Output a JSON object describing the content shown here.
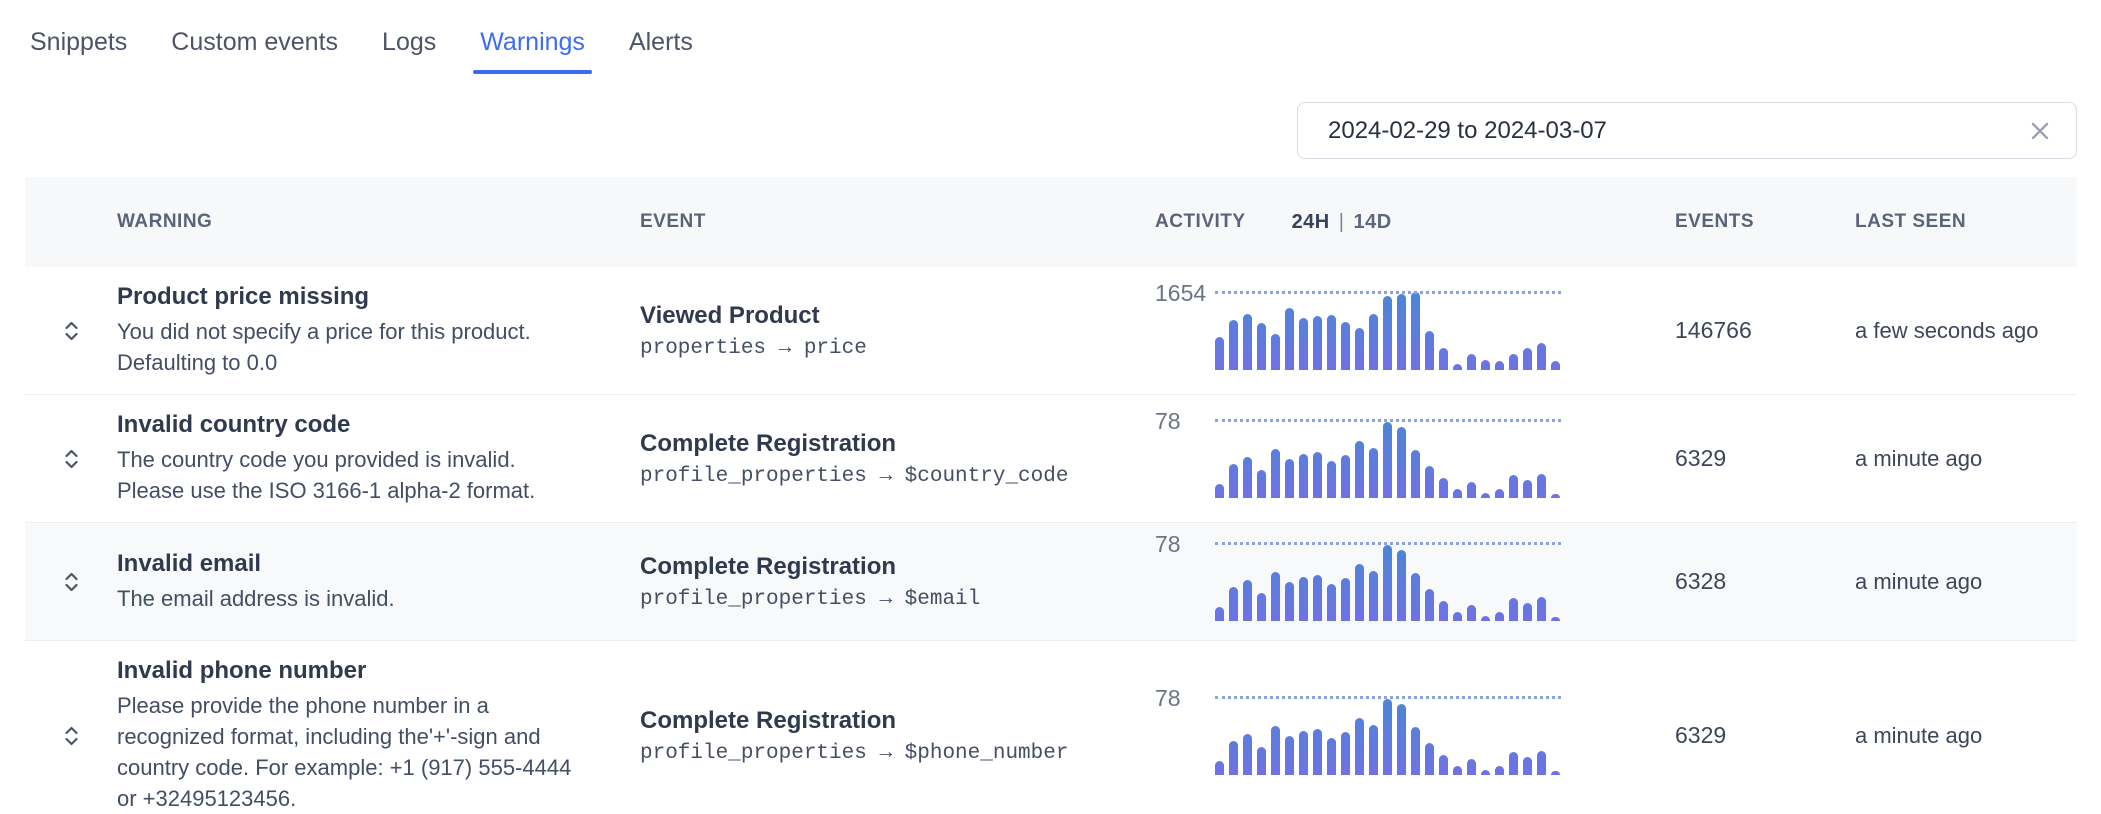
{
  "tabs": [
    {
      "label": "Snippets",
      "active": false
    },
    {
      "label": "Custom events",
      "active": false
    },
    {
      "label": "Logs",
      "active": false
    },
    {
      "label": "Warnings",
      "active": true
    },
    {
      "label": "Alerts",
      "active": false
    }
  ],
  "filters": {
    "date_range_value": "2024-02-29 to 2024-03-07"
  },
  "table": {
    "headers": {
      "warning": "WARNING",
      "event": "EVENT",
      "activity": "ACTIVITY",
      "toggle_24h": "24H",
      "toggle_divider": "|",
      "toggle_14d": "14D",
      "events": "EVENTS",
      "last_seen": "LAST SEEN"
    },
    "rows": [
      {
        "warning_title": "Product price missing",
        "warning_description": "You did not specify a price for this product. Defaulting to 0.0",
        "event_name": "Viewed Product",
        "event_property": "properties → price",
        "activity": {
          "max_label": "1654",
          "bars": [
            0.42,
            0.64,
            0.72,
            0.6,
            0.46,
            0.79,
            0.67,
            0.69,
            0.71,
            0.62,
            0.54,
            0.72,
            0.95,
            0.97,
            1.0,
            0.5,
            0.28,
            0.08,
            0.2,
            0.13,
            0.11,
            0.21,
            0.28,
            0.34,
            0.11
          ]
        },
        "events_count": "146766",
        "last_seen": "a few seconds ago"
      },
      {
        "warning_title": "Invalid country code",
        "warning_description": "The country code you provided is invalid. Please use the ISO 3166-1 alpha-2 format.",
        "event_name": "Complete Registration",
        "event_property": "profile_properties → $country_code",
        "activity": {
          "max_label": "78",
          "bars": [
            0.18,
            0.44,
            0.52,
            0.36,
            0.63,
            0.5,
            0.57,
            0.59,
            0.47,
            0.55,
            0.73,
            0.64,
            0.97,
            0.91,
            0.61,
            0.41,
            0.25,
            0.11,
            0.21,
            0.07,
            0.11,
            0.29,
            0.23,
            0.31,
            0.05
          ]
        },
        "events_count": "6329",
        "last_seen": "a minute ago"
      },
      {
        "warning_title": "Invalid email",
        "warning_description": "The email address is invalid.",
        "event_name": "Complete Registration",
        "event_property": "profile_properties → $email",
        "activity": {
          "max_label": "78",
          "bars": [
            0.18,
            0.44,
            0.52,
            0.36,
            0.63,
            0.5,
            0.57,
            0.59,
            0.47,
            0.55,
            0.73,
            0.64,
            0.97,
            0.91,
            0.61,
            0.41,
            0.25,
            0.11,
            0.21,
            0.07,
            0.11,
            0.29,
            0.23,
            0.31,
            0.05
          ]
        },
        "events_count": "6328",
        "last_seen": "a minute ago"
      },
      {
        "warning_title": "Invalid phone number",
        "warning_description": "Please provide the phone number in a recognized format, including the'+'-sign and country code. For example: +1 (917) 555-4444 or +32495123456.",
        "event_name": "Complete Registration",
        "event_property": "profile_properties → $phone_number",
        "activity": {
          "max_label": "78",
          "bars": [
            0.18,
            0.44,
            0.52,
            0.36,
            0.63,
            0.5,
            0.57,
            0.59,
            0.47,
            0.55,
            0.73,
            0.64,
            0.97,
            0.91,
            0.61,
            0.41,
            0.25,
            0.11,
            0.21,
            0.07,
            0.11,
            0.29,
            0.23,
            0.31,
            0.05
          ]
        },
        "events_count": "6329",
        "last_seen": "a minute ago"
      }
    ]
  },
  "colors": {
    "accent": "#3b6cf2",
    "bar_top": "#4a87d5",
    "bar_bottom": "#6f72e4",
    "dotted_line": "#8aa3de"
  }
}
